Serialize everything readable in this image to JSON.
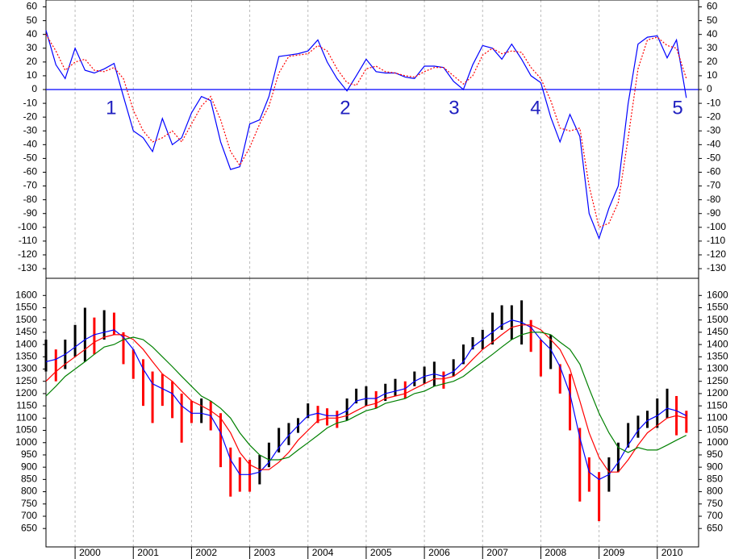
{
  "chart_data": [
    {
      "type": "line",
      "xlim": [
        1999.5,
        2010.71
      ],
      "xticks": [
        2000,
        2001,
        2002,
        2003,
        2004,
        2005,
        2006,
        2007,
        2008,
        2009,
        2010
      ],
      "ylim": [
        -137,
        65
      ],
      "yticks": [
        60,
        50,
        40,
        30,
        20,
        10,
        0,
        -10,
        -20,
        -30,
        -40,
        -50,
        -60,
        -70,
        -80,
        -90,
        -100,
        -110,
        -120,
        -130
      ],
      "grid": true,
      "reference_line": {
        "value": 0,
        "color": "#0000ff"
      },
      "x": [
        1999.5,
        1999.67,
        1999.83,
        2000,
        2000.17,
        2000.33,
        2000.5,
        2000.67,
        2000.83,
        2001,
        2001.17,
        2001.33,
        2001.5,
        2001.67,
        2001.83,
        2002,
        2002.17,
        2002.33,
        2002.5,
        2002.67,
        2002.83,
        2003,
        2003.17,
        2003.33,
        2003.5,
        2003.67,
        2003.83,
        2004,
        2004.17,
        2004.33,
        2004.5,
        2004.67,
        2004.83,
        2005,
        2005.17,
        2005.33,
        2005.5,
        2005.67,
        2005.83,
        2006,
        2006.17,
        2006.33,
        2006.5,
        2006.67,
        2006.83,
        2007,
        2007.17,
        2007.33,
        2007.5,
        2007.67,
        2007.83,
        2008,
        2008.17,
        2008.33,
        2008.5,
        2008.67,
        2008.83,
        2009,
        2009.17,
        2009.33,
        2009.5,
        2009.67,
        2009.83,
        2010,
        2010.17,
        2010.33,
        2010.5
      ],
      "series": [
        {
          "color": "#0000ff",
          "dashed": false,
          "values": [
            43,
            18,
            8,
            30,
            14,
            12,
            15,
            19,
            -5,
            -30,
            -35,
            -45,
            -21,
            -40,
            -35,
            -17,
            -5,
            -8,
            -38,
            -58,
            -56,
            -25,
            -22,
            -5,
            24,
            25,
            26,
            28,
            36,
            20,
            8,
            -1,
            10,
            22,
            13,
            12,
            12,
            9,
            8,
            17,
            17,
            16,
            6,
            0,
            18,
            32,
            30,
            22,
            33,
            22,
            10,
            5,
            -20,
            -38,
            -18,
            -34,
            -90,
            -108,
            -86,
            -70,
            -10,
            33,
            38,
            39,
            23,
            36,
            -6
          ]
        },
        {
          "color": "#ff0000",
          "dashed": true,
          "values": [
            40,
            28,
            14,
            20,
            22,
            14,
            13,
            16,
            8,
            -15,
            -30,
            -38,
            -35,
            -30,
            -38,
            -25,
            -12,
            -5,
            -22,
            -45,
            -55,
            -42,
            -25,
            -12,
            12,
            24,
            25,
            26,
            32,
            28,
            15,
            5,
            3,
            15,
            17,
            13,
            12,
            10,
            9,
            13,
            16,
            16,
            10,
            4,
            10,
            25,
            30,
            26,
            28,
            27,
            16,
            8,
            -8,
            -28,
            -30,
            -28,
            -70,
            -100,
            -97,
            -82,
            -35,
            15,
            36,
            38,
            32,
            30,
            8
          ]
        }
      ],
      "annotations": [
        {
          "text": "1",
          "x": 2000.62,
          "y": -14
        },
        {
          "text": "2",
          "x": 2004.64,
          "y": -14
        },
        {
          "text": "3",
          "x": 2006.51,
          "y": -14
        },
        {
          "text": "4",
          "x": 2007.91,
          "y": -14
        },
        {
          "text": "5",
          "x": 2010.35,
          "y": -14
        }
      ]
    },
    {
      "type": "price",
      "xlim": [
        1999.5,
        2010.71
      ],
      "xticks": [
        2000,
        2001,
        2002,
        2003,
        2004,
        2005,
        2006,
        2007,
        2008,
        2009,
        2010
      ],
      "ylim": [
        575,
        1670
      ],
      "yticks": [
        1600,
        1550,
        1500,
        1450,
        1400,
        1350,
        1300,
        1250,
        1200,
        1150,
        1100,
        1050,
        1000,
        950,
        900,
        850,
        800,
        750,
        700,
        650
      ],
      "grid": true,
      "up_color": "#000000",
      "down_color": "#ff0000",
      "x": [
        1999.5,
        1999.67,
        1999.83,
        2000,
        2000.17,
        2000.33,
        2000.5,
        2000.67,
        2000.83,
        2001,
        2001.17,
        2001.33,
        2001.5,
        2001.67,
        2001.83,
        2002,
        2002.17,
        2002.33,
        2002.5,
        2002.67,
        2002.83,
        2003,
        2003.17,
        2003.33,
        2003.5,
        2003.67,
        2003.83,
        2004,
        2004.17,
        2004.33,
        2004.5,
        2004.67,
        2004.83,
        2005,
        2005.17,
        2005.33,
        2005.5,
        2005.67,
        2005.83,
        2006,
        2006.17,
        2006.33,
        2006.5,
        2006.67,
        2006.83,
        2007,
        2007.17,
        2007.33,
        2007.5,
        2007.67,
        2007.83,
        2008,
        2008.17,
        2008.33,
        2008.5,
        2008.67,
        2008.83,
        2009,
        2009.17,
        2009.33,
        2009.5,
        2009.67,
        2009.83,
        2010,
        2010.17,
        2010.33,
        2010.5
      ],
      "low": [
        1290,
        1250,
        1300,
        1350,
        1330,
        1360,
        1420,
        1440,
        1320,
        1260,
        1150,
        1080,
        1150,
        1100,
        1000,
        1080,
        1080,
        1050,
        900,
        780,
        800,
        800,
        830,
        900,
        960,
        990,
        1040,
        1100,
        1080,
        1070,
        1060,
        1090,
        1160,
        1150,
        1140,
        1170,
        1190,
        1180,
        1230,
        1240,
        1230,
        1220,
        1270,
        1320,
        1380,
        1380,
        1400,
        1460,
        1420,
        1400,
        1370,
        1270,
        1300,
        1200,
        1050,
        760,
        800,
        680,
        800,
        880,
        980,
        1020,
        1060,
        1060,
        1100,
        1030,
        1040
      ],
      "high": [
        1420,
        1380,
        1420,
        1480,
        1550,
        1510,
        1540,
        1530,
        1450,
        1380,
        1340,
        1290,
        1280,
        1250,
        1200,
        1170,
        1180,
        1170,
        1120,
        980,
        940,
        930,
        950,
        1000,
        1060,
        1080,
        1100,
        1160,
        1150,
        1140,
        1130,
        1180,
        1220,
        1230,
        1210,
        1240,
        1260,
        1250,
        1290,
        1310,
        1330,
        1290,
        1340,
        1400,
        1430,
        1460,
        1530,
        1560,
        1560,
        1580,
        1500,
        1420,
        1440,
        1320,
        1280,
        1060,
        940,
        880,
        940,
        1000,
        1080,
        1110,
        1130,
        1180,
        1220,
        1190,
        1130
      ],
      "series": [
        {
          "color": "#0000ff",
          "values": [
            1330,
            1340,
            1360,
            1390,
            1420,
            1440,
            1450,
            1460,
            1430,
            1380,
            1300,
            1240,
            1220,
            1200,
            1150,
            1120,
            1120,
            1110,
            1040,
            930,
            870,
            870,
            880,
            920,
            980,
            1030,
            1070,
            1110,
            1120,
            1110,
            1110,
            1130,
            1170,
            1180,
            1180,
            1200,
            1210,
            1220,
            1250,
            1270,
            1280,
            1270,
            1290,
            1330,
            1390,
            1420,
            1450,
            1480,
            1500,
            1490,
            1470,
            1420,
            1380,
            1310,
            1200,
            1020,
            880,
            850,
            870,
            920,
            990,
            1050,
            1090,
            1110,
            1140,
            1130,
            1110
          ]
        },
        {
          "color": "#ff0000",
          "values": [
            1250,
            1290,
            1320,
            1350,
            1380,
            1410,
            1430,
            1440,
            1440,
            1420,
            1380,
            1330,
            1280,
            1250,
            1210,
            1170,
            1150,
            1130,
            1100,
            1040,
            960,
            910,
            890,
            890,
            920,
            960,
            1010,
            1050,
            1090,
            1100,
            1100,
            1110,
            1130,
            1150,
            1160,
            1180,
            1190,
            1200,
            1220,
            1240,
            1260,
            1260,
            1270,
            1300,
            1340,
            1380,
            1410,
            1440,
            1470,
            1480,
            1480,
            1460,
            1420,
            1380,
            1300,
            1170,
            1040,
            940,
            880,
            880,
            930,
            990,
            1040,
            1070,
            1100,
            1110,
            1100
          ]
        },
        {
          "color": "#008000",
          "values": [
            1190,
            1230,
            1270,
            1300,
            1330,
            1360,
            1390,
            1400,
            1420,
            1430,
            1420,
            1390,
            1350,
            1310,
            1270,
            1230,
            1190,
            1170,
            1140,
            1100,
            1040,
            990,
            950,
            930,
            930,
            940,
            970,
            1000,
            1030,
            1060,
            1080,
            1090,
            1110,
            1130,
            1140,
            1160,
            1170,
            1180,
            1200,
            1210,
            1230,
            1240,
            1250,
            1270,
            1300,
            1330,
            1360,
            1390,
            1420,
            1440,
            1450,
            1450,
            1440,
            1410,
            1380,
            1320,
            1220,
            1120,
            1040,
            980,
            960,
            980,
            970,
            970,
            990,
            1010,
            1030
          ]
        }
      ]
    }
  ]
}
